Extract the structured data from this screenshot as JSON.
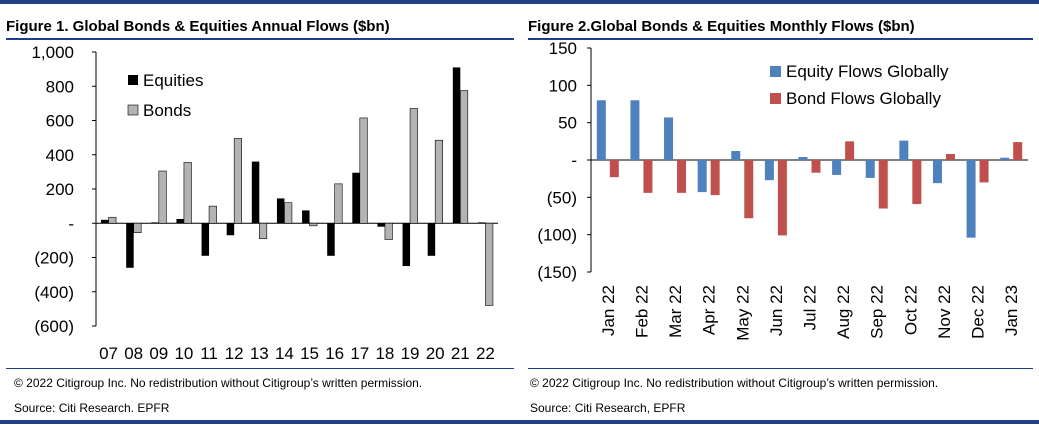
{
  "figure1": {
    "title": "Figure 1. Global Bonds & Equities Annual Flows ($bn)",
    "copyright": "© 2022 Citigroup Inc. No redistribution without Citigroup’s written permission.",
    "source": "Source: Citi Research. EPFR",
    "chart_data": {
      "type": "bar",
      "categories": [
        "07",
        "08",
        "09",
        "10",
        "11",
        "12",
        "13",
        "14",
        "15",
        "16",
        "17",
        "18",
        "19",
        "20",
        "21",
        "22"
      ],
      "series": [
        {
          "name": "Equities",
          "color": "#000000",
          "values": [
            20,
            -260,
            5,
            25,
            -190,
            -70,
            360,
            145,
            75,
            -190,
            295,
            -20,
            -250,
            -190,
            910,
            5
          ]
        },
        {
          "name": "Bonds",
          "color": "#b3b3b3",
          "values": [
            35,
            -55,
            305,
            355,
            100,
            495,
            -90,
            120,
            -15,
            230,
            615,
            -95,
            670,
            485,
            775,
            -480
          ]
        }
      ],
      "ylim": [
        -600,
        1000
      ],
      "yticks": [
        1000,
        800,
        600,
        400,
        200,
        0,
        -200,
        -400,
        -600
      ],
      "ytick_labels": [
        "1,000",
        "800",
        "600",
        "400",
        "200",
        "-",
        "(200)",
        "(400)",
        "(600)"
      ],
      "legend": "top-left"
    }
  },
  "figure2": {
    "title": "Figure 2.Global Bonds & Equities Monthly Flows ($bn)",
    "copyright": "© 2022 Citigroup Inc. No redistribution without Citigroup’s written permission.",
    "source": "Source: Citi Research, EPFR",
    "chart_data": {
      "type": "bar",
      "categories": [
        "Jan 22",
        "Feb 22",
        "Mar 22",
        "Apr 22",
        "May 22",
        "Jun 22",
        "Jul 22",
        "Aug 22",
        "Sep 22",
        "Oct 22",
        "Nov 22",
        "Dec 22",
        "Jan 23"
      ],
      "series": [
        {
          "name": "Equity Flows Globally",
          "color": "#4f81bd",
          "values": [
            80,
            80,
            57,
            -43,
            12,
            -27,
            4,
            -20,
            -24,
            26,
            -31,
            -104,
            3
          ]
        },
        {
          "name": "Bond Flows Globally",
          "color": "#c0504d",
          "values": [
            -23,
            -44,
            -44,
            -47,
            -78,
            -101,
            -17,
            25,
            -65,
            -59,
            8,
            -30,
            24
          ]
        }
      ],
      "ylim": [
        -150,
        150
      ],
      "yticks": [
        150,
        100,
        50,
        0,
        -50,
        -100,
        -150
      ],
      "ytick_labels": [
        "150",
        "100",
        "50",
        "-",
        "(50)",
        "(100)",
        "(150)"
      ],
      "legend": "top-right"
    }
  }
}
